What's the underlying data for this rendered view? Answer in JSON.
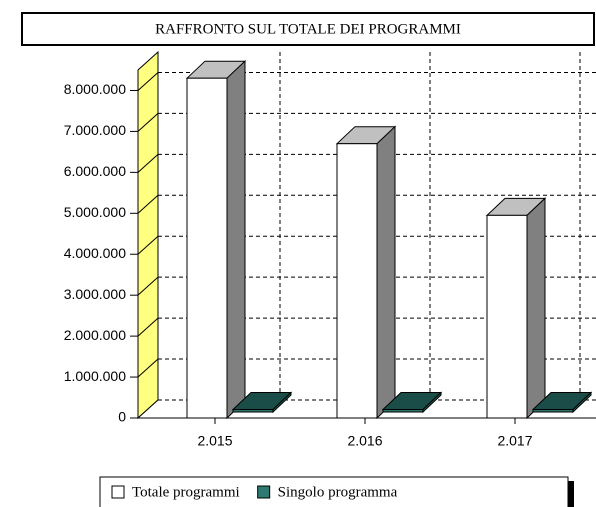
{
  "chart_data": {
    "type": "bar3d",
    "title": "RAFFRONTO SUL TOTALE DEI PROGRAMMI",
    "categories": [
      "2.015",
      "2.016",
      "2.017"
    ],
    "series": [
      {
        "name": "Totale programmi",
        "color": "#ffffff",
        "values": [
          8300000,
          6700000,
          4950000
        ]
      },
      {
        "name": "Singolo programma",
        "color": "#2f7a70",
        "values": [
          60000,
          60000,
          60000
        ]
      }
    ],
    "ylim": [
      0,
      8500000
    ],
    "yticks": [
      0,
      {
        "value": 1000000,
        "label": "1.000.000"
      },
      {
        "value": 2000000,
        "label": "2.000.000"
      },
      {
        "value": 3000000,
        "label": "3.000.000"
      },
      {
        "value": 4000000,
        "label": "4.000.000"
      },
      {
        "value": 5000000,
        "label": "5.000.000"
      },
      {
        "value": 6000000,
        "label": "6.000.000"
      },
      {
        "value": 7000000,
        "label": "7.000.000"
      },
      {
        "value": 8000000,
        "label": "8.000.000"
      }
    ],
    "grid": true,
    "legend": "bottom"
  }
}
